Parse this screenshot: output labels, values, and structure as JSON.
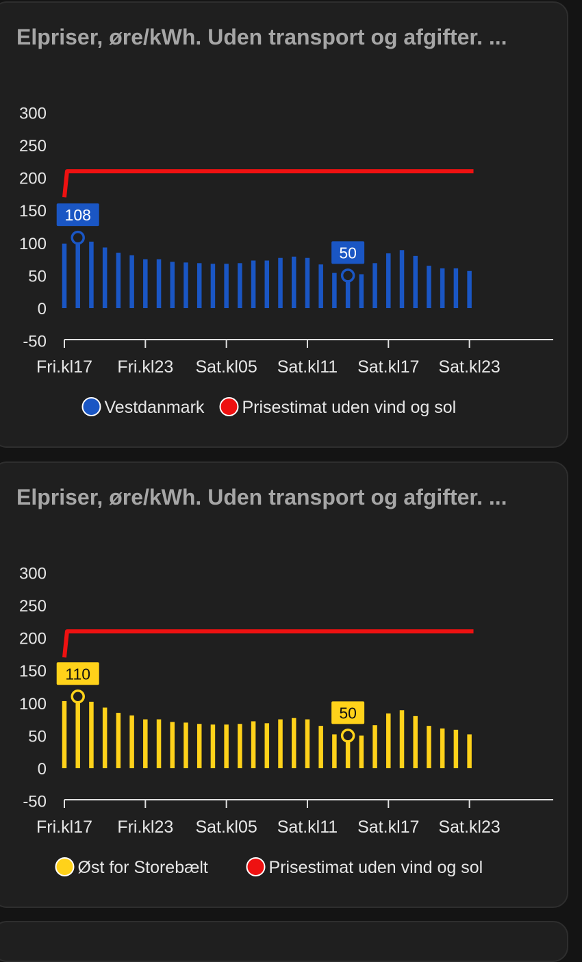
{
  "cards": [
    {
      "title": "Elpriser, øre/kWh. Uden transport og afgifter. ..."
    },
    {
      "title": "Elpriser, øre/kWh. Uden transport og afgifter. ..."
    }
  ],
  "chart_data": [
    {
      "type": "bar",
      "title": "Elpriser, øre/kWh. Uden transport og afgifter. ...",
      "ylim": [
        -50,
        300
      ],
      "yticks": [
        "300",
        "250",
        "200",
        "150",
        "100",
        "50",
        "0",
        "-50"
      ],
      "xticks": [
        "Fri.kl17",
        "Fri.kl23",
        "Sat.kl05",
        "Sat.kl11",
        "Sat.kl17",
        "Sat.kl23"
      ],
      "x_hours": [
        17,
        18,
        19,
        20,
        21,
        22,
        23,
        24,
        25,
        26,
        27,
        28,
        29,
        30,
        31,
        32,
        33,
        34,
        35,
        36,
        37,
        38,
        39,
        40,
        41,
        42,
        43,
        44,
        45,
        46,
        47
      ],
      "series": [
        {
          "name": "Vestdanmark",
          "type": "bar",
          "color": "#1a56c4",
          "values": [
            99,
            108,
            102,
            93,
            85,
            81,
            75,
            75,
            71,
            70,
            69,
            68,
            68,
            69,
            73,
            73,
            77,
            79,
            77,
            67,
            54,
            50,
            52,
            69,
            84,
            89,
            80,
            65,
            61,
            61,
            57
          ]
        },
        {
          "name": "Prisestimat uden vind og sol",
          "type": "line",
          "color": "#ee1111",
          "x": [
            17,
            17.2,
            47.3
          ],
          "values": [
            170,
            210,
            210
          ]
        }
      ],
      "annotations": [
        {
          "label": "108",
          "index": 1
        },
        {
          "label": "50",
          "index": 21
        }
      ],
      "legend": [
        "Vestdanmark",
        "Prisestimat uden vind og sol"
      ],
      "legend_position": "bottom",
      "grid": false
    },
    {
      "type": "bar",
      "title": "Elpriser, øre/kWh. Uden transport og afgifter. ...",
      "ylim": [
        -50,
        300
      ],
      "yticks": [
        "300",
        "250",
        "200",
        "150",
        "100",
        "50",
        "0",
        "-50"
      ],
      "xticks": [
        "Fri.kl17",
        "Fri.kl23",
        "Sat.kl05",
        "Sat.kl11",
        "Sat.kl17",
        "Sat.kl23"
      ],
      "x_hours": [
        17,
        18,
        19,
        20,
        21,
        22,
        23,
        24,
        25,
        26,
        27,
        28,
        29,
        30,
        31,
        32,
        33,
        34,
        35,
        36,
        37,
        38,
        39,
        40,
        41,
        42,
        43,
        44,
        45,
        46,
        47
      ],
      "series": [
        {
          "name": "Øst for Storebælt",
          "type": "bar",
          "color": "#ffd21a",
          "values": [
            103,
            110,
            102,
            93,
            85,
            81,
            75,
            75,
            71,
            70,
            68,
            67,
            67,
            68,
            72,
            69,
            75,
            77,
            75,
            65,
            52,
            50,
            50,
            66,
            84,
            89,
            80,
            65,
            61,
            59,
            52
          ]
        },
        {
          "name": "Prisestimat uden vind og sol",
          "type": "line",
          "color": "#ee1111",
          "x": [
            17,
            17.2,
            47.3
          ],
          "values": [
            170,
            210,
            210
          ]
        }
      ],
      "annotations": [
        {
          "label": "110",
          "index": 1
        },
        {
          "label": "50",
          "index": 21
        }
      ],
      "legend": [
        "Øst for Storebælt",
        "Prisestimat uden vind og sol"
      ],
      "legend_position": "bottom",
      "grid": false
    }
  ]
}
